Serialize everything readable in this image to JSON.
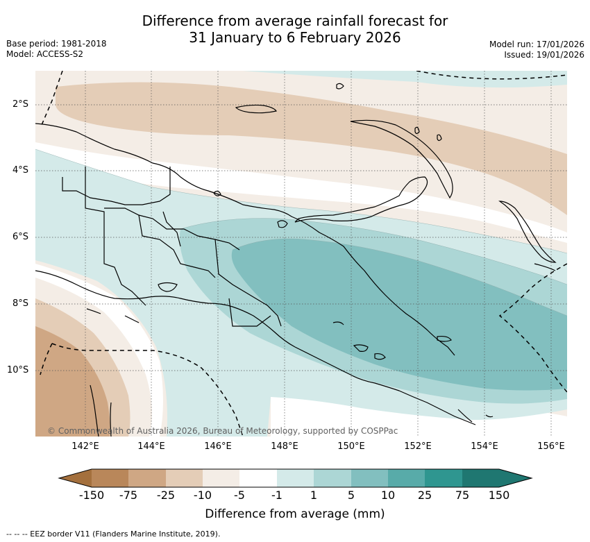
{
  "title": {
    "line1": "Difference from average rainfall forecast for",
    "line2": "31 January to 6 February 2026"
  },
  "meta": {
    "base_period": "Base period: 1981-2018",
    "model": "Model: ACCESS-S2",
    "model_run": "Model run: 17/01/2026",
    "issued": "Issued: 19/01/2026"
  },
  "map": {
    "lat_labels": [
      "2°S",
      "4°S",
      "6°S",
      "8°S",
      "10°S"
    ],
    "lon_labels": [
      "142°E",
      "144°E",
      "146°E",
      "148°E",
      "150°E",
      "152°E",
      "154°E",
      "156°E"
    ],
    "credit": "© Commonwealth of Australia 2026, Bureau of Meteorology, supported by COSPPac"
  },
  "colorbar": {
    "title": "Difference from average (mm)",
    "ticks": [
      "-150",
      "-75",
      "-25",
      "-10",
      "-5",
      "-1",
      "1",
      "5",
      "10",
      "25",
      "75",
      "150"
    ],
    "colors": [
      "#a4703d",
      "#b9875a",
      "#cfa784",
      "#e4cdb7",
      "#f4ede6",
      "#ffffff",
      "#d4eae9",
      "#acd6d5",
      "#82bfbf",
      "#58aba9",
      "#2f9690",
      "#1f7771"
    ]
  },
  "footnote": "--  --  -- EEZ border V11 (Flanders Marine Institute, 2019)."
}
